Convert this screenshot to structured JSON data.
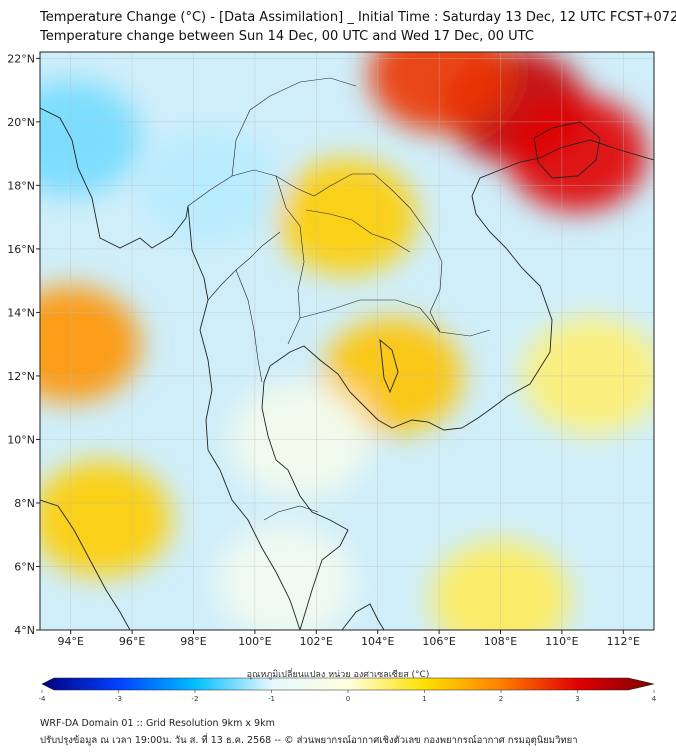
{
  "title": {
    "line1": "Temperature Change (°C) - [Data Assimilation] _ Initial Time : Saturday 13 Dec, 12 UTC FCST+072",
    "line2": "Temperature change between Sun 14 Dec, 00 UTC and Wed 17 Dec, 00 UTC"
  },
  "map": {
    "lat_labels": [
      "22°N",
      "20°N",
      "18°N",
      "16°N",
      "14°N",
      "12°N",
      "10°N",
      "8°N",
      "6°N",
      "4°N"
    ],
    "lon_labels": [
      "94°E",
      "96°E",
      "98°E",
      "100°E",
      "102°E",
      "104°E",
      "106°E",
      "108°E",
      "110°E",
      "112°E"
    ],
    "lat_values": [
      22,
      20,
      18,
      16,
      14,
      12,
      10,
      8,
      6,
      4
    ],
    "lon_values": [
      94,
      96,
      98,
      100,
      102,
      104,
      106,
      108,
      110,
      112
    ],
    "extent": {
      "lon_min": 93,
      "lon_max": 113,
      "lat_min": 4,
      "lat_max": 22.2
    },
    "field_regions": [
      {
        "name": "gulf-of-tonkin-south-china",
        "lon": 108.5,
        "lat": 20.5,
        "value": 3.3
      },
      {
        "name": "northeast-vietnam",
        "lon": 106,
        "lat": 21.5,
        "value": 2.6
      },
      {
        "name": "hainan",
        "lon": 110.5,
        "lat": 19,
        "value": 3.0
      },
      {
        "name": "north-myanmar",
        "lon": 98.5,
        "lat": 18,
        "value": -1.2
      },
      {
        "name": "bay-of-bengal-north",
        "lon": 94,
        "lat": 19.5,
        "value": -1.5
      },
      {
        "name": "laos-plateau",
        "lon": 103,
        "lat": 17,
        "value": 1.2
      },
      {
        "name": "cambodia",
        "lon": 104.5,
        "lat": 12,
        "value": 1.3
      },
      {
        "name": "andaman-sea-west",
        "lon": 94,
        "lat": 13,
        "value": 1.8
      },
      {
        "name": "andaman-sea-south",
        "lon": 95,
        "lat": 7.5,
        "value": 1.2
      },
      {
        "name": "gulf-of-thailand",
        "lon": 101.5,
        "lat": 10,
        "value": -0.4
      },
      {
        "name": "malay-peninsula",
        "lon": 101,
        "lat": 5.5,
        "value": -0.5
      },
      {
        "name": "south-china-sea-east",
        "lon": 111,
        "lat": 12,
        "value": 0.5
      },
      {
        "name": "south-china-sea-south",
        "lon": 108,
        "lat": 5,
        "value": 0.6
      }
    ]
  },
  "colorbar": {
    "caption": "อุณหภูมิเปลี่ยนแปลง หน่วย องศาเซลเซียส (°C)",
    "min": -4,
    "max": 4,
    "tick_labels": [
      "-4",
      "-3",
      "-2",
      "-1",
      "0",
      "1",
      "2",
      "3",
      "4"
    ],
    "tick_values": [
      -4,
      -3,
      -2,
      -1,
      0,
      1,
      2,
      3,
      4
    ],
    "colors": [
      "#00007f",
      "#0040ff",
      "#00bfff",
      "#e6f7ff",
      "#ffffe0",
      "#ffe000",
      "#ff8000",
      "#e00000",
      "#7f0000"
    ]
  },
  "footer": {
    "line1": "WRF-DA Domain 01 :: Grid Resolution 9km x 9km",
    "line2": "ปรับปรุงข้อมูล ณ เวลา 19:00น. วัน ส. ที่ 13 ธ.ค. 2568 -- © ส่วนพยากรณ์อากาศเชิงตัวเลข กองพยากรณ์อากาศ กรมอุตุนิยมวิทยา"
  }
}
